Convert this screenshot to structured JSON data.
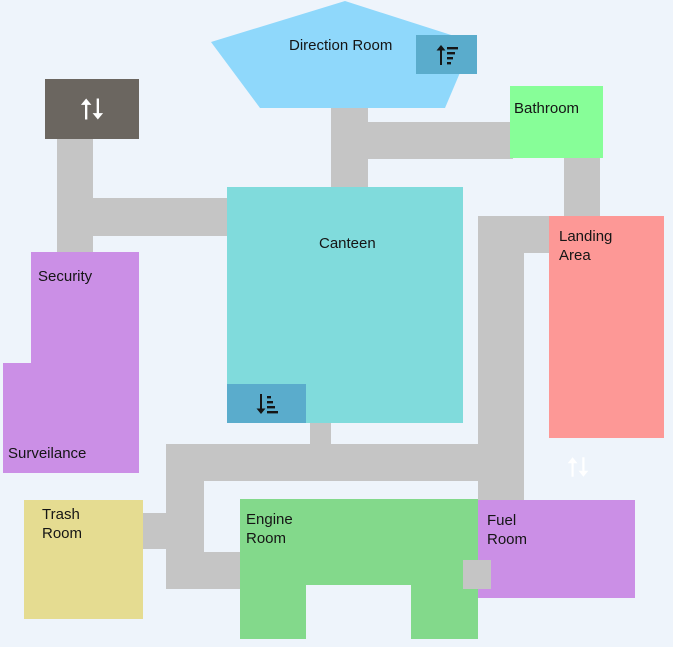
{
  "rooms": {
    "direction": {
      "name": "Direction Room",
      "color": "#8fd8fb"
    },
    "bathroom": {
      "name": "Bathroom",
      "color": "#87fe98"
    },
    "canteen": {
      "name": "Canteen",
      "color": "#80dbdc"
    },
    "security": {
      "name": "Security",
      "color": "#cb8fe6"
    },
    "surveillance": {
      "name": "Surveilance",
      "color": "#cb8fe6"
    },
    "landing": {
      "name_line1": "Landing",
      "name_line2": "Area",
      "color": "#fd9896"
    },
    "trash": {
      "name_line1": "Trash",
      "name_line2": "Room",
      "color": "#e5dc91"
    },
    "engine": {
      "name_line1": "Engine",
      "name_line2": "Room",
      "color": "#83d98b"
    },
    "fuel": {
      "name_line1": "Fuel",
      "name_line2": "Room",
      "color": "#cb8fe6"
    }
  },
  "corridor_color": "#c5c5c5",
  "icons": [
    {
      "id": "elevator",
      "name": "up-down-arrows-icon",
      "glyph": "⇅",
      "bg": "#6b6660",
      "fg": "#ffffff"
    },
    {
      "id": "sort_up",
      "name": "sort-ascending-icon",
      "bg": "#5aaccc",
      "fg": "#151515"
    },
    {
      "id": "sort_down",
      "name": "sort-descending-icon",
      "bg": "#5aaccc",
      "fg": "#151515"
    },
    {
      "id": "vent",
      "name": "up-down-arrows-icon",
      "glyph": "⇅",
      "bg": "none",
      "fg": "#ffffff"
    }
  ]
}
